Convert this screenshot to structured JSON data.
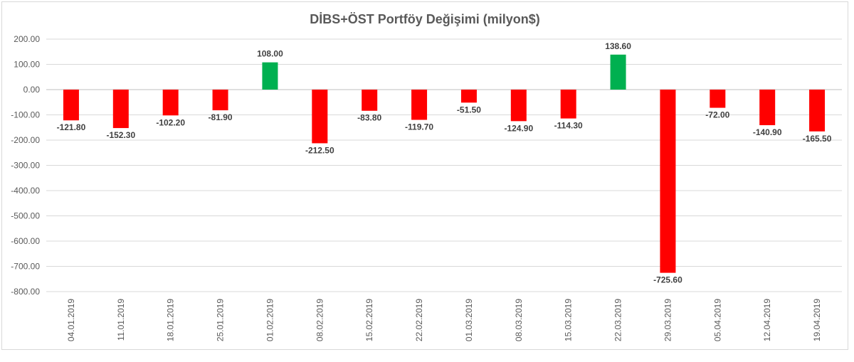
{
  "chart_data": {
    "type": "bar",
    "title": "DİBS+ÖST Portföy Değişimi (milyon$)",
    "xlabel": "",
    "ylabel": "",
    "ylim": [
      -800,
      200
    ],
    "ytick_step": 100,
    "ytick_labels": [
      "200.00",
      "100.00",
      "0.00",
      "-100.00",
      "-200.00",
      "-300.00",
      "-400.00",
      "-500.00",
      "-600.00",
      "-700.00",
      "-800.00"
    ],
    "grid": true,
    "legend": "none",
    "categories": [
      "04.01.2019",
      "11.01.2019",
      "18.01.2019",
      "25.01.2019",
      "01.02.2019",
      "08.02.2019",
      "15.02.2019",
      "22.02.2019",
      "01.03.2019",
      "08.03.2019",
      "15.03.2019",
      "22.03.2019",
      "29.03.2019",
      "05.04.2019",
      "12.04.2019",
      "19.04.2019"
    ],
    "values": [
      -121.8,
      -152.3,
      -102.2,
      -81.9,
      108.0,
      -212.5,
      -83.8,
      -119.7,
      -51.5,
      -124.9,
      -114.3,
      138.6,
      -725.6,
      -72.0,
      -140.9,
      -165.5
    ],
    "value_labels": [
      "-121.80",
      "-152.30",
      "-102.20",
      "-81.90",
      "108.00",
      "-212.50",
      "-83.80",
      "-119.70",
      "-51.50",
      "-124.90",
      "-114.30",
      "138.60",
      "-725.60",
      "-72.00",
      "-140.90",
      "-165.50"
    ],
    "colors": {
      "positive": "#00b050",
      "negative": "#ff0000"
    }
  }
}
